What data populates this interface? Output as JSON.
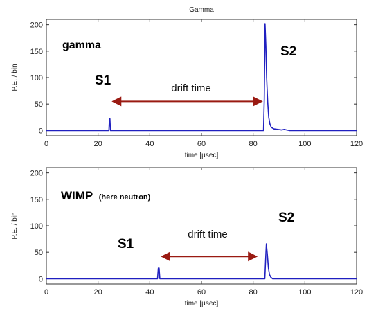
{
  "chart_data": [
    {
      "type": "line",
      "title": "Gamma",
      "xlabel": "time [µsec]",
      "ylabel": "P.E. / bin",
      "xlim": [
        0,
        120
      ],
      "ylim": [
        -10,
        210
      ],
      "xticks": [
        "0",
        "20",
        "40",
        "60",
        "80",
        "100",
        "120"
      ],
      "yticks": [
        "0",
        "50",
        "100",
        "150",
        "200"
      ],
      "color": "#2020c0",
      "series": [
        {
          "x": [
            0,
            24.2,
            24.4,
            24.6,
            24.8,
            84.0,
            84.3,
            84.6,
            84.9,
            85.2,
            85.6,
            86.0,
            86.5,
            87.0,
            88.0,
            89.5,
            91.0,
            92.0,
            93.0,
            94.0,
            120
          ],
          "y": [
            0,
            0,
            22,
            22,
            0,
            0,
            60,
            202,
            160,
            100,
            55,
            25,
            12,
            6,
            3,
            2,
            1,
            2,
            1,
            0,
            0
          ]
        }
      ],
      "annotations": {
        "label": "gamma",
        "s1": "S1",
        "s2": "S2",
        "drift": "drift time",
        "arrow_x": [
          26,
          83
        ],
        "arrow_y": 55
      }
    },
    {
      "type": "line",
      "title": "",
      "xlabel": "time [µsec]",
      "ylabel": "P.E. / bin",
      "xlim": [
        0,
        120
      ],
      "ylim": [
        -10,
        210
      ],
      "xticks": [
        "0",
        "20",
        "40",
        "60",
        "80",
        "100",
        "120"
      ],
      "yticks": [
        "0",
        "50",
        "100",
        "150",
        "200"
      ],
      "color": "#2020c0",
      "series": [
        {
          "x": [
            0,
            43.0,
            43.3,
            43.6,
            43.9,
            84.5,
            84.8,
            85.1,
            85.5,
            85.9,
            86.3,
            86.8,
            87.5,
            120
          ],
          "y": [
            0,
            0,
            20,
            20,
            0,
            0,
            35,
            66,
            45,
            20,
            8,
            3,
            0,
            0
          ]
        }
      ],
      "annotations": {
        "label": "WIMP",
        "label_small": "(here neutron)",
        "s1": "S1",
        "s2": "S2",
        "drift": "drift time",
        "arrow_x": [
          45,
          81
        ],
        "arrow_y": 42
      }
    }
  ]
}
